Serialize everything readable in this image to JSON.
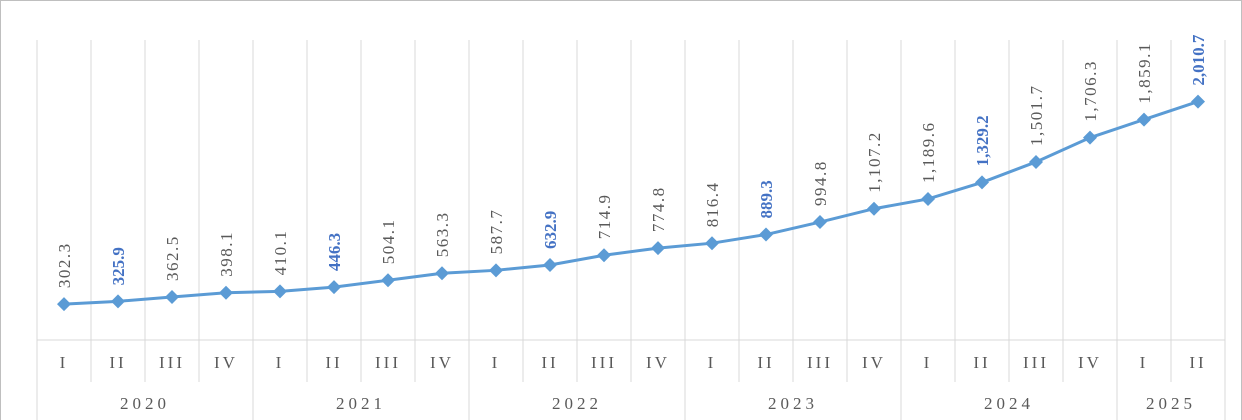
{
  "chart_data": {
    "type": "line",
    "category_groups": [
      {
        "name": "2020",
        "categories": [
          "I",
          "II",
          "III",
          "IV"
        ]
      },
      {
        "name": "2021",
        "categories": [
          "I",
          "II",
          "III",
          "IV"
        ]
      },
      {
        "name": "2022",
        "categories": [
          "I",
          "II",
          "III",
          "IV"
        ]
      },
      {
        "name": "2023",
        "categories": [
          "I",
          "II",
          "III",
          "IV"
        ]
      },
      {
        "name": "2024",
        "categories": [
          "I",
          "II",
          "III",
          "IV"
        ]
      },
      {
        "name": "2025",
        "categories": [
          "I",
          "II"
        ]
      }
    ],
    "series": [
      {
        "color": "#5b9bd5",
        "label_color": "#595959",
        "highlight_color": "#4472c4",
        "values": [
          302.3,
          325.9,
          362.5,
          398.1,
          410.1,
          446.3,
          504.1,
          563.3,
          587.7,
          632.9,
          714.9,
          774.8,
          816.4,
          889.3,
          994.8,
          1107.2,
          1189.6,
          1329.2,
          1501.7,
          1706.3,
          1859.1,
          2010.7
        ],
        "value_labels": [
          "302.3",
          "325.9",
          "362.5",
          "398.1",
          "410.1",
          "446.3",
          "504.1",
          "563.3",
          "587.7",
          "632.9",
          "714.9",
          "774.8",
          "816.4",
          "889.3",
          "994.8",
          "1,107.2",
          "1,189.6",
          "1,329.2",
          "1,501.7",
          "1,706.3",
          "1,859.1",
          "2,010.7"
        ],
        "highlight": [
          false,
          true,
          false,
          false,
          false,
          true,
          false,
          false,
          false,
          true,
          false,
          false,
          false,
          true,
          false,
          false,
          false,
          true,
          false,
          false,
          false,
          true
        ]
      }
    ],
    "ylim": [
      0,
      2800
    ]
  }
}
